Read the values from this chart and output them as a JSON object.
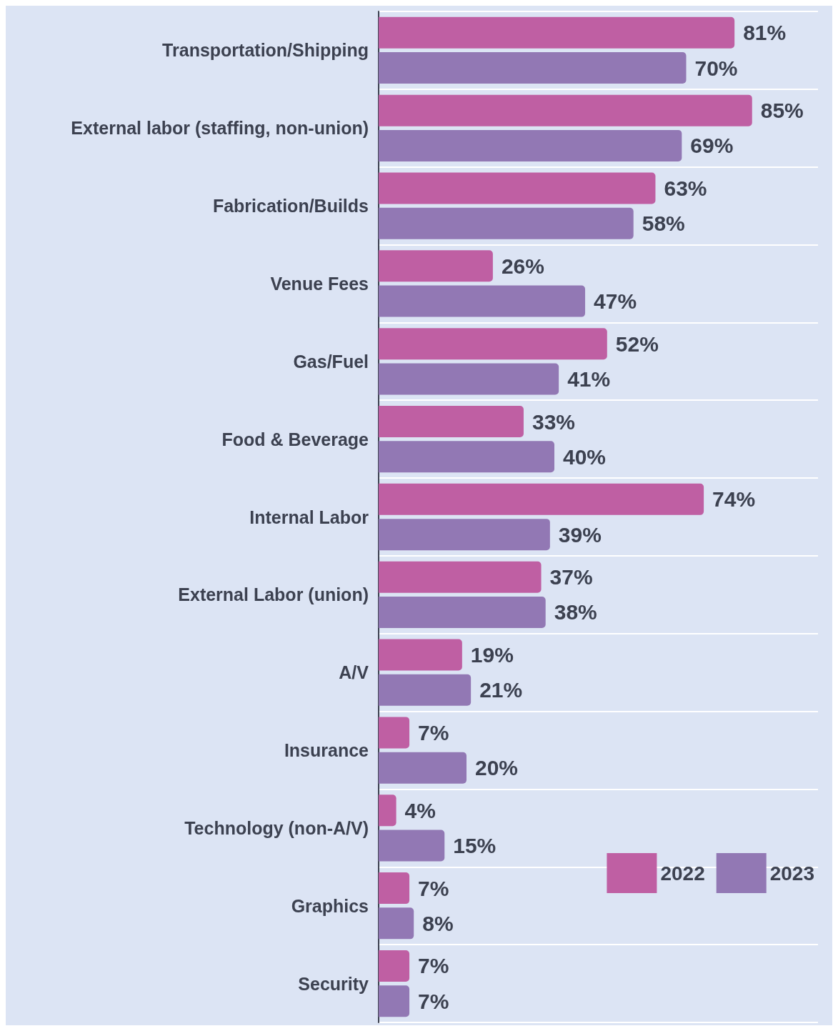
{
  "chart_data": {
    "type": "bar",
    "orientation": "horizontal",
    "categories": [
      "Transportation/Shipping",
      "External labor (staffing, non-union)",
      "Fabrication/Builds",
      "Venue Fees",
      "Gas/Fuel",
      "Food & Beverage",
      "Internal Labor",
      "External Labor (union)",
      "A/V",
      "Insurance",
      "Technology (non-A/V)",
      "Graphics",
      "Security"
    ],
    "series": [
      {
        "name": "2022",
        "color": "#bf5fa3",
        "values": [
          81,
          85,
          63,
          26,
          52,
          33,
          74,
          37,
          19,
          7,
          4,
          7,
          7
        ],
        "value_labels": [
          "81%",
          "85%",
          "63%",
          "26%",
          "52%",
          "33%",
          "74%",
          "37%",
          "19%",
          "7%",
          "4%",
          "7%",
          "7%"
        ]
      },
      {
        "name": "2023",
        "color": "#9278b4",
        "values": [
          70,
          69,
          58,
          47,
          41,
          40,
          39,
          38,
          21,
          20,
          15,
          8,
          7
        ],
        "value_labels": [
          "70%",
          "69%",
          "58%",
          "47%",
          "41%",
          "40%",
          "39%",
          "38%",
          "21%",
          "20%",
          "15%",
          "8%",
          "7%"
        ]
      }
    ],
    "xlim": [
      0,
      100
    ],
    "grid": "y",
    "legend": "bottom right"
  }
}
